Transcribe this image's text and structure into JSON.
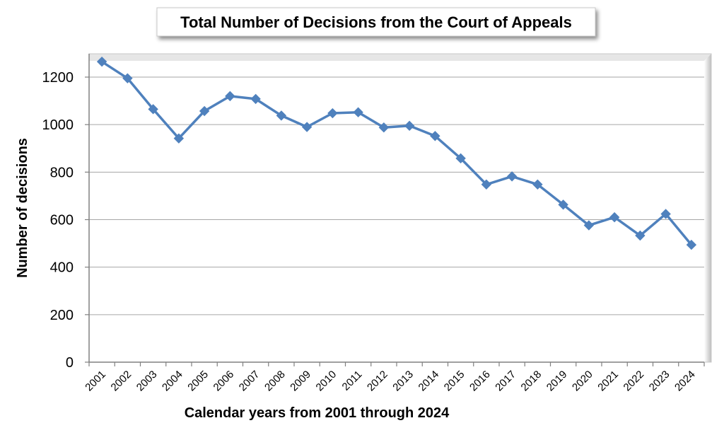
{
  "chart_data": {
    "type": "line",
    "title": "Total Number of Decisions from the Court of Appeals",
    "xlabel": "Calendar years from 2001 through 2024",
    "ylabel": "Number of decisions",
    "ylim": [
      0,
      1300
    ],
    "yticks": [
      0,
      200,
      400,
      600,
      800,
      1000,
      1200
    ],
    "grid": true,
    "legend": "none",
    "colors": {
      "series": "#4f81bd",
      "grid": "#a6a6a6"
    },
    "categories": [
      "2001",
      "2002",
      "2003",
      "2004",
      "2005",
      "2006",
      "2007",
      "2008",
      "2009",
      "2010",
      "2011",
      "2012",
      "2013",
      "2014",
      "2015",
      "2016",
      "2017",
      "2018",
      "2019",
      "2020",
      "2021",
      "2022",
      "2023",
      "2024"
    ],
    "series": [
      {
        "values": [
          1265,
          1195,
          1065,
          942,
          1057,
          1120,
          1108,
          1038,
          990,
          1048,
          1052,
          988,
          995,
          952,
          858,
          748,
          782,
          748,
          663,
          576,
          610,
          533,
          624,
          494
        ]
      }
    ]
  }
}
